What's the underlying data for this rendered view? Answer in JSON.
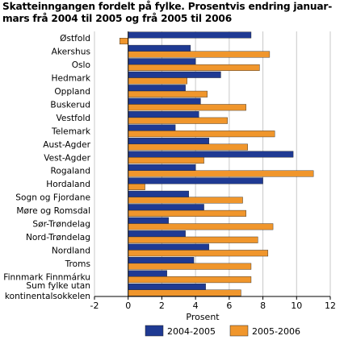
{
  "title_line1": "Skatteinngangen fordelt på fylke. Prosentvis endring januar-",
  "title_line2": "mars frå 2004 til 2005 og frå 2005 til 2006",
  "chart_data": {
    "type": "bar",
    "orientation": "horizontal",
    "categories": [
      "Østfold",
      "Akershus",
      "Oslo",
      "Hedmark",
      "Oppland",
      "Buskerud",
      "Vestfold",
      "Telemark",
      "Aust-Agder",
      "Vest-Agder",
      "Rogaland",
      "Hordaland",
      "Sogn og Fjordane",
      "Møre og Romsdal",
      "Sør-Trøndelag",
      "Nord-Trøndelag",
      "Nordland",
      "Troms",
      "Finnmark Finnmárku",
      "Sum fylke utan kontinentalsokkelen"
    ],
    "series": [
      {
        "name": "2004-2005",
        "color": "#1f3a93",
        "values": [
          7.3,
          3.7,
          4.0,
          5.5,
          3.4,
          4.3,
          4.2,
          2.8,
          4.8,
          9.8,
          4.0,
          8.0,
          3.6,
          4.5,
          2.4,
          3.4,
          4.8,
          3.9,
          2.3,
          4.6
        ]
      },
      {
        "name": "2005-2006",
        "color": "#f0962c",
        "values": [
          -0.5,
          8.4,
          7.8,
          3.5,
          4.7,
          7.0,
          5.9,
          8.7,
          7.1,
          4.5,
          11.0,
          1.0,
          6.8,
          7.0,
          8.6,
          7.7,
          8.3,
          7.3,
          7.3,
          6.7
        ]
      }
    ],
    "xlabel": "Prosent",
    "xlim": [
      -2,
      12
    ],
    "xticks": [
      -2,
      0,
      2,
      4,
      6,
      8,
      10,
      12
    ],
    "grid": true,
    "legend_position": "bottom"
  }
}
